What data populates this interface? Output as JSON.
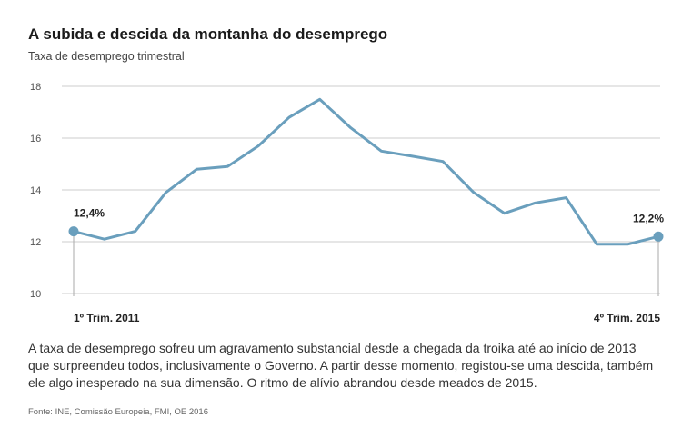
{
  "header": {
    "title": "A subida e descida da montanha do desemprego",
    "subtitle": "Taxa de desemprego trimestral"
  },
  "description": "A taxa de desemprego sofreu um agravamento substancial desde a chegada da troika até ao início de 2013 que surpreendeu todos, inclusivamente o Governo. A partir desse momento, registou-se uma descida, também ele algo inesperado na sua dimensão. O ritmo de alívio abrandou desde meados de 2015.",
  "source": "Fonte: INE, Comissão Europeia, FMI, OE 2016",
  "colors": {
    "line": "#6a9fbd",
    "grid": "#cccccc",
    "text": "#333333"
  },
  "chart_data": {
    "type": "line",
    "title": "A subida e descida da montanha do desemprego",
    "subtitle": "Taxa de desemprego trimestral",
    "x_start_label": "1º Trim. 2011",
    "x_end_label": "4º Trim. 2015",
    "ylim": [
      10,
      18
    ],
    "yticks": [
      10,
      12,
      14,
      16,
      18
    ],
    "grid": true,
    "values": [
      12.4,
      12.1,
      12.4,
      13.9,
      14.8,
      14.9,
      15.7,
      16.8,
      17.5,
      16.4,
      15.5,
      15.3,
      15.1,
      13.9,
      13.1,
      13.5,
      13.7,
      11.9,
      11.9,
      12.2
    ],
    "annotations": [
      {
        "index": 0,
        "label": "12,4%"
      },
      {
        "index": 19,
        "label": "12,2%"
      }
    ]
  }
}
